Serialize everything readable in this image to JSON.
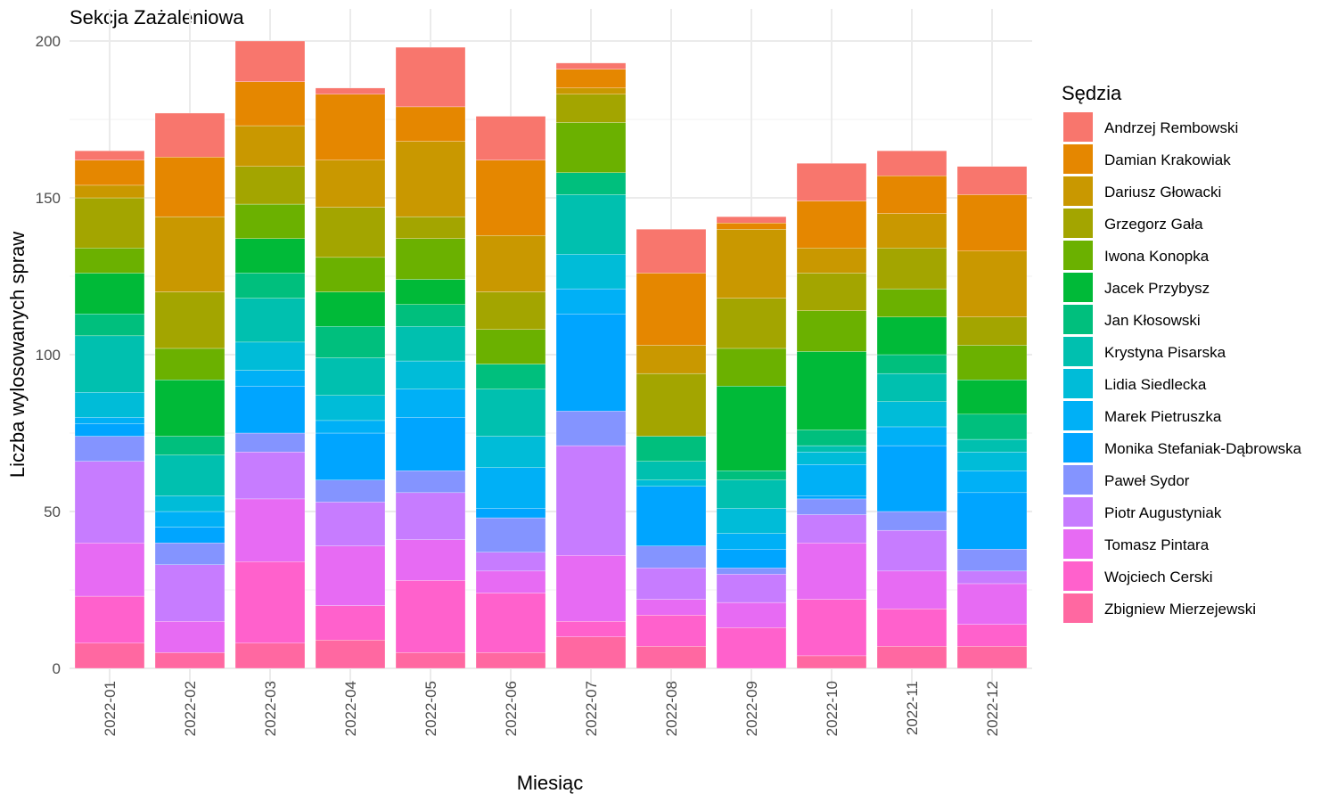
{
  "chart_data": {
    "type": "bar",
    "stacked": true,
    "title": "Sekcja Zażaleniowa",
    "xlabel": "Miesiąc",
    "ylabel": "Liczba wylosowanych spraw",
    "ylim": [
      0,
      200
    ],
    "y_ticks": [
      0,
      50,
      100,
      150,
      200
    ],
    "grid": true,
    "legend_title": "Sędzia",
    "legend_position": "right",
    "categories": [
      "2022-01",
      "2022-02",
      "2022-03",
      "2022-04",
      "2022-05",
      "2022-06",
      "2022-07",
      "2022-08",
      "2022-09",
      "2022-10",
      "2022-11",
      "2022-12"
    ],
    "series": [
      {
        "name": "Andrzej Rembowski",
        "color": "#F8766D",
        "values": [
          3,
          14,
          13,
          2,
          19,
          14,
          2,
          14,
          2,
          12,
          8,
          9
        ]
      },
      {
        "name": "Damian Krakowiak",
        "color": "#E58700",
        "values": [
          8,
          19,
          14,
          21,
          11,
          24,
          6,
          23,
          2,
          15,
          12,
          18
        ]
      },
      {
        "name": "Dariusz Głowacki",
        "color": "#C99800",
        "values": [
          4,
          24,
          13,
          15,
          24,
          18,
          2,
          9,
          22,
          8,
          11,
          21
        ]
      },
      {
        "name": "Grzegorz Gała",
        "color": "#A3A500",
        "values": [
          16,
          18,
          12,
          16,
          7,
          12,
          9,
          20,
          16,
          12,
          13,
          9
        ]
      },
      {
        "name": "Iwona Konopka",
        "color": "#6BB100",
        "values": [
          8,
          10,
          11,
          11,
          13,
          11,
          16,
          0,
          12,
          13,
          9,
          11
        ]
      },
      {
        "name": "Jacek Przybysz",
        "color": "#00BA38",
        "values": [
          13,
          18,
          11,
          11,
          8,
          0,
          0,
          0,
          27,
          25,
          12,
          11
        ]
      },
      {
        "name": "Jan Kłosowski",
        "color": "#00BF7D",
        "values": [
          7,
          6,
          8,
          10,
          7,
          8,
          7,
          8,
          3,
          5,
          6,
          8
        ]
      },
      {
        "name": "Krystyna Pisarska",
        "color": "#00C0AF",
        "values": [
          18,
          13,
          14,
          12,
          11,
          15,
          19,
          6,
          9,
          2,
          9,
          4
        ]
      },
      {
        "name": "Lidia Siedlecka",
        "color": "#00BCD8",
        "values": [
          8,
          5,
          9,
          8,
          9,
          10,
          11,
          2,
          8,
          4,
          8,
          6
        ]
      },
      {
        "name": "Marek Pietruszka",
        "color": "#00B0F6",
        "values": [
          2,
          5,
          5,
          4,
          9,
          13,
          8,
          0,
          5,
          10,
          6,
          7
        ]
      },
      {
        "name": "Monika Stefaniak-Dąbrowska",
        "color": "#00A5FF",
        "values": [
          4,
          5,
          15,
          15,
          17,
          3,
          31,
          19,
          6,
          1,
          21,
          18
        ]
      },
      {
        "name": "Paweł Sydor",
        "color": "#7CAE00",
        "values": [
          0,
          0,
          0,
          0,
          0,
          0,
          0,
          0,
          0,
          0,
          0,
          0
        ]
      },
      {
        "name": "Paweł Sydor",
        "color": "#8494FF",
        "values": [
          8,
          7,
          6,
          7,
          7,
          11,
          11,
          7,
          2,
          5,
          6,
          7
        ]
      },
      {
        "name": "Piotr Augustyniak",
        "color": "#C77CFF",
        "values": [
          26,
          18,
          15,
          14,
          15,
          6,
          35,
          10,
          9,
          9,
          13,
          4
        ]
      },
      {
        "name": "Tomasz Pintara",
        "color": "#E76BF3",
        "values": [
          17,
          10,
          20,
          19,
          13,
          7,
          21,
          5,
          8,
          18,
          12,
          13
        ]
      },
      {
        "name": "Wojciech Cerski",
        "color": "#FF61CC",
        "values": [
          15,
          0,
          26,
          11,
          23,
          19,
          5,
          10,
          13,
          18,
          12,
          7
        ]
      },
      {
        "name": "Zbigniew Mierzejewski",
        "color": "#FF68A1",
        "values": [
          8,
          5,
          8,
          9,
          5,
          5,
          10,
          7,
          0,
          4,
          7,
          7
        ]
      }
    ]
  }
}
